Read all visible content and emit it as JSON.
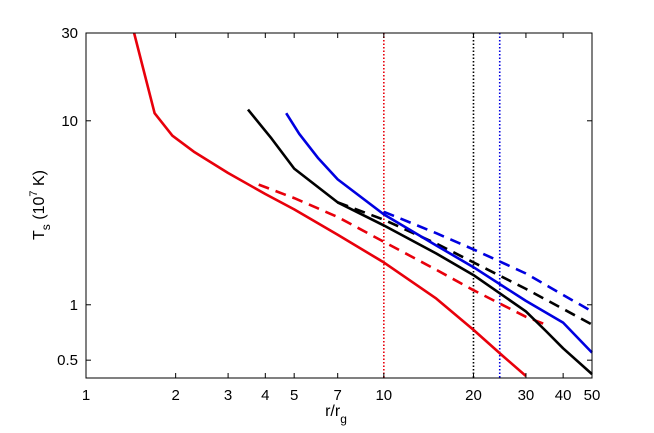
{
  "chart_data": {
    "type": "line",
    "xscale": "log",
    "yscale": "log",
    "xlim": [
      1,
      50
    ],
    "ylim": [
      0.4,
      30
    ],
    "xticks": [
      1,
      2,
      3,
      4,
      5,
      7,
      10,
      20,
      30,
      40,
      50
    ],
    "xtick_labels": [
      "1",
      "2",
      "3",
      "4",
      "5",
      "7",
      "10",
      "20",
      "30",
      "40",
      "50"
    ],
    "yticks": [
      0.5,
      1,
      10,
      30
    ],
    "ytick_labels": [
      "0.5",
      "1",
      "10",
      "30"
    ],
    "xlabel": {
      "main": "r/r",
      "sub": "g"
    },
    "ylabel": {
      "main": "T",
      "sub": "s",
      "rest": " (10",
      "sup": "7",
      "end": " K)"
    },
    "grid": false,
    "colors": {
      "red": "#e8000b",
      "black": "#000000",
      "blue": "#0000e0"
    },
    "series": [
      {
        "color": "red",
        "style": "solid",
        "x": [
          1.45,
          1.7,
          1.95,
          2.3,
          3,
          4,
          5,
          7,
          10,
          15,
          20,
          25,
          30
        ],
        "y": [
          30,
          11,
          8.3,
          6.8,
          5.2,
          4.0,
          3.3,
          2.4,
          1.7,
          1.08,
          0.73,
          0.53,
          0.41
        ]
      },
      {
        "color": "red",
        "style": "dashed",
        "x": [
          3.8,
          5,
          7,
          10,
          15,
          20,
          30,
          35
        ],
        "y": [
          4.5,
          3.8,
          3.0,
          2.2,
          1.55,
          1.2,
          0.86,
          0.78
        ]
      },
      {
        "color": "black",
        "style": "solid",
        "x": [
          3.5,
          4.2,
          5,
          7,
          10,
          15,
          20,
          30,
          35,
          40,
          50
        ],
        "y": [
          11.5,
          8.0,
          5.5,
          3.6,
          2.7,
          1.9,
          1.45,
          0.92,
          0.72,
          0.58,
          0.42
        ]
      },
      {
        "color": "black",
        "style": "dashed",
        "x": [
          7,
          10,
          15,
          20,
          30,
          40,
          50
        ],
        "y": [
          3.6,
          2.9,
          2.15,
          1.7,
          1.22,
          0.95,
          0.78
        ]
      },
      {
        "color": "blue",
        "style": "solid",
        "x": [
          4.7,
          5.2,
          6,
          7,
          10,
          15,
          20,
          30,
          40,
          50
        ],
        "y": [
          11,
          8.5,
          6.3,
          4.8,
          3.1,
          2.1,
          1.6,
          1.05,
          0.8,
          0.55
        ]
      },
      {
        "color": "blue",
        "style": "dashed",
        "x": [
          10,
          15,
          20,
          30,
          40,
          50
        ],
        "y": [
          3.2,
          2.45,
          2.0,
          1.48,
          1.13,
          0.92
        ]
      }
    ],
    "vlines": [
      {
        "x": 10,
        "color": "red",
        "style": "dotted"
      },
      {
        "x": 20,
        "color": "black",
        "style": "dotted"
      },
      {
        "x": 24.5,
        "color": "blue",
        "style": "dotted"
      }
    ]
  }
}
